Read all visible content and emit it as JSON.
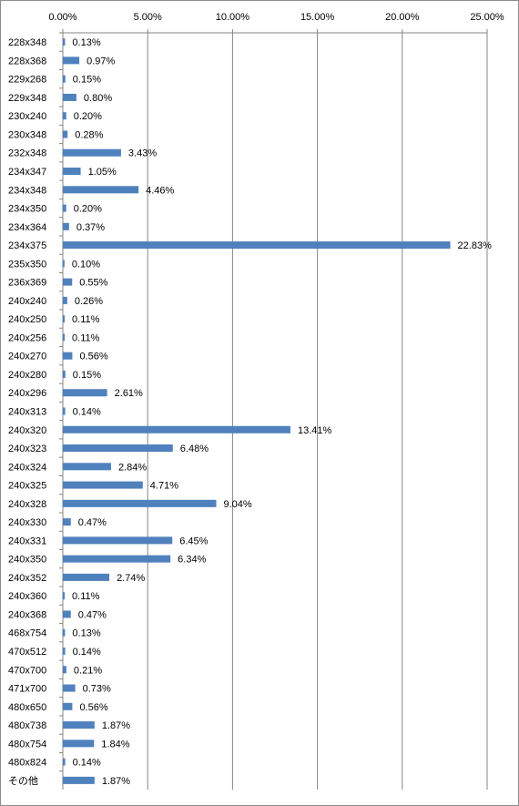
{
  "chart_data": {
    "type": "bar",
    "orientation": "horizontal",
    "title": "",
    "xlabel": "",
    "ylabel": "",
    "xlim": [
      0,
      25
    ],
    "x_ticks": [
      "0.00%",
      "5.00%",
      "10.00%",
      "15.00%",
      "20.00%",
      "25.00%"
    ],
    "x_tick_values": [
      0,
      5,
      10,
      15,
      20,
      25
    ],
    "x_axis_position": "top",
    "grid": "vertical",
    "legend": "none",
    "bar_color": "#4f81bd",
    "categories": [
      "228x348",
      "228x368",
      "229x268",
      "229x348",
      "230x240",
      "230x348",
      "232x348",
      "234x347",
      "234x348",
      "234x350",
      "234x364",
      "234x375",
      "235x350",
      "236x369",
      "240x240",
      "240x250",
      "240x256",
      "240x270",
      "240x280",
      "240x296",
      "240x313",
      "240x320",
      "240x323",
      "240x324",
      "240x325",
      "240x328",
      "240x330",
      "240x331",
      "240x350",
      "240x352",
      "240x360",
      "240x368",
      "468x754",
      "470x512",
      "470x700",
      "471x700",
      "480x650",
      "480x738",
      "480x754",
      "480x824",
      "その他"
    ],
    "values": [
      0.13,
      0.97,
      0.15,
      0.8,
      0.2,
      0.28,
      3.43,
      1.05,
      4.46,
      0.2,
      0.37,
      22.83,
      0.1,
      0.55,
      0.26,
      0.11,
      0.11,
      0.56,
      0.15,
      2.61,
      0.14,
      13.41,
      6.48,
      2.84,
      4.71,
      9.04,
      0.47,
      6.45,
      6.34,
      2.74,
      0.11,
      0.47,
      0.13,
      0.14,
      0.21,
      0.73,
      0.56,
      1.87,
      1.84,
      0.14,
      1.87
    ],
    "value_labels": [
      "0.13%",
      "0.97%",
      "0.15%",
      "0.80%",
      "0.20%",
      "0.28%",
      "3.43%",
      "1.05%",
      "4.46%",
      "0.20%",
      "0.37%",
      "22.83%",
      "0.10%",
      "0.55%",
      "0.26%",
      "0.11%",
      "0.11%",
      "0.56%",
      "0.15%",
      "2.61%",
      "0.14%",
      "13.41%",
      "6.48%",
      "2.84%",
      "4.71%",
      "9.04%",
      "0.47%",
      "6.45%",
      "6.34%",
      "2.74%",
      "0.11%",
      "0.47%",
      "0.13%",
      "0.14%",
      "0.21%",
      "0.73%",
      "0.56%",
      "1.87%",
      "1.84%",
      "0.14%",
      "1.87%"
    ]
  }
}
